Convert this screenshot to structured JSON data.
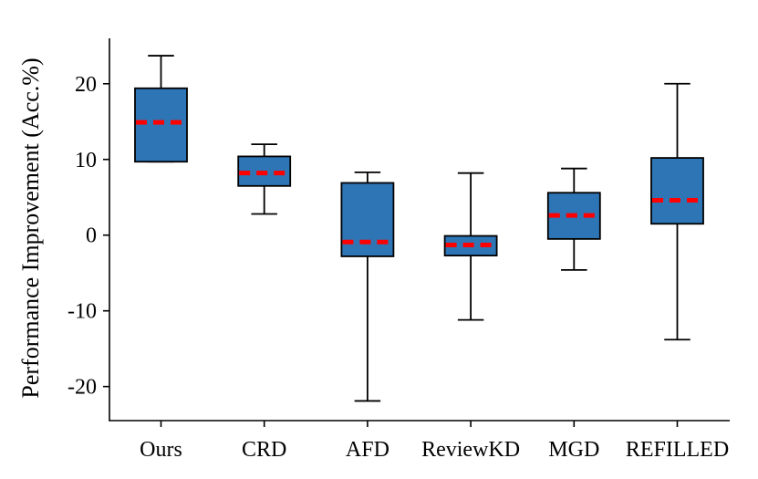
{
  "chart_data": {
    "type": "boxplot",
    "title": "",
    "xlabel": "",
    "ylabel": "Performance Improvement (Acc.%)",
    "ylim": [
      -24.5,
      26
    ],
    "yticks": [
      -20,
      -10,
      0,
      10,
      20
    ],
    "ytick_labels": [
      "-20",
      "-10",
      "0",
      "10",
      "20"
    ],
    "categories": [
      "Ours",
      "CRD",
      "AFD",
      "ReviewKD",
      "MGD",
      "REFILLED"
    ],
    "boxes": [
      {
        "name": "Ours",
        "whisker_low": 9.7,
        "q1": 9.7,
        "median": 14.9,
        "q3": 19.4,
        "whisker_high": 23.7
      },
      {
        "name": "CRD",
        "whisker_low": 2.8,
        "q1": 6.5,
        "median": 8.2,
        "q3": 10.4,
        "whisker_high": 12.0
      },
      {
        "name": "AFD",
        "whisker_low": -21.9,
        "q1": -2.8,
        "median": -0.9,
        "q3": 6.9,
        "whisker_high": 8.3
      },
      {
        "name": "ReviewKD",
        "whisker_low": -11.2,
        "q1": -2.7,
        "median": -1.3,
        "q3": -0.1,
        "whisker_high": 8.2
      },
      {
        "name": "MGD",
        "whisker_low": -4.6,
        "q1": -0.5,
        "median": 2.6,
        "q3": 5.6,
        "whisker_high": 8.8
      },
      {
        "name": "REFILLED",
        "whisker_low": -13.8,
        "q1": 1.5,
        "median": 4.6,
        "q3": 10.2,
        "whisker_high": 20.0
      }
    ],
    "box_color": "#2e75b6",
    "median_color": "#ff0000",
    "grid": false,
    "legend": "none"
  }
}
